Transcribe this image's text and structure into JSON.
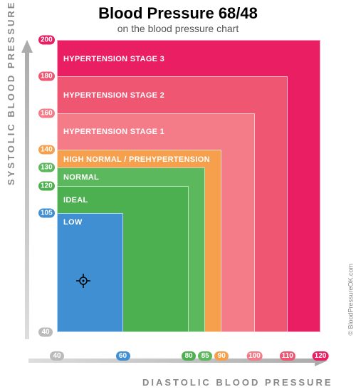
{
  "title": "Blood Pressure 68/48",
  "subtitle": "on the blood pressure chart",
  "y_label": "SYSTOLIC BLOOD PRESSURE",
  "x_label": "DIASTOLIC BLOOD PRESSURE",
  "credit": "© BloodPressureOK.com",
  "x_range": [
    40,
    120
  ],
  "y_range": [
    40,
    200
  ],
  "marker": {
    "diastolic": 48,
    "systolic": 68
  },
  "zones": [
    {
      "label": "HYPERTENSION STAGE 3",
      "x_max": 120,
      "y_max": 200,
      "color": "#e91e63"
    },
    {
      "label": "HYPERTENSION STAGE 2",
      "x_max": 110,
      "y_max": 180,
      "color": "#ef5672"
    },
    {
      "label": "HYPERTENSION STAGE 1",
      "x_max": 100,
      "y_max": 160,
      "color": "#f47b88"
    },
    {
      "label": "HIGH NORMAL / PREHYPERTENSION",
      "x_max": 90,
      "y_max": 140,
      "color": "#f6a04e"
    },
    {
      "label": "NORMAL",
      "x_max": 85,
      "y_max": 130,
      "color": "#5cb85c"
    },
    {
      "label": "IDEAL",
      "x_max": 80,
      "y_max": 120,
      "color": "#4caf50"
    },
    {
      "label": "LOW",
      "x_max": 60,
      "y_max": 105,
      "color": "#3f8fd2"
    }
  ],
  "y_ticks": [
    {
      "v": 200,
      "color": "#e91e63"
    },
    {
      "v": 180,
      "color": "#ef5672"
    },
    {
      "v": 160,
      "color": "#f47b88"
    },
    {
      "v": 140,
      "color": "#f6a04e"
    },
    {
      "v": 130,
      "color": "#5cb85c"
    },
    {
      "v": 120,
      "color": "#4caf50"
    },
    {
      "v": 105,
      "color": "#3f8fd2"
    },
    {
      "v": 40,
      "color": "#bbbbbb"
    }
  ],
  "x_ticks": [
    {
      "v": 40,
      "color": "#bbbbbb"
    },
    {
      "v": 60,
      "color": "#3f8fd2"
    },
    {
      "v": 80,
      "color": "#4caf50"
    },
    {
      "v": 85,
      "color": "#5cb85c"
    },
    {
      "v": 90,
      "color": "#f6a04e"
    },
    {
      "v": 100,
      "color": "#f47b88"
    },
    {
      "v": 110,
      "color": "#ef5672"
    },
    {
      "v": 120,
      "color": "#e91e63"
    }
  ]
}
